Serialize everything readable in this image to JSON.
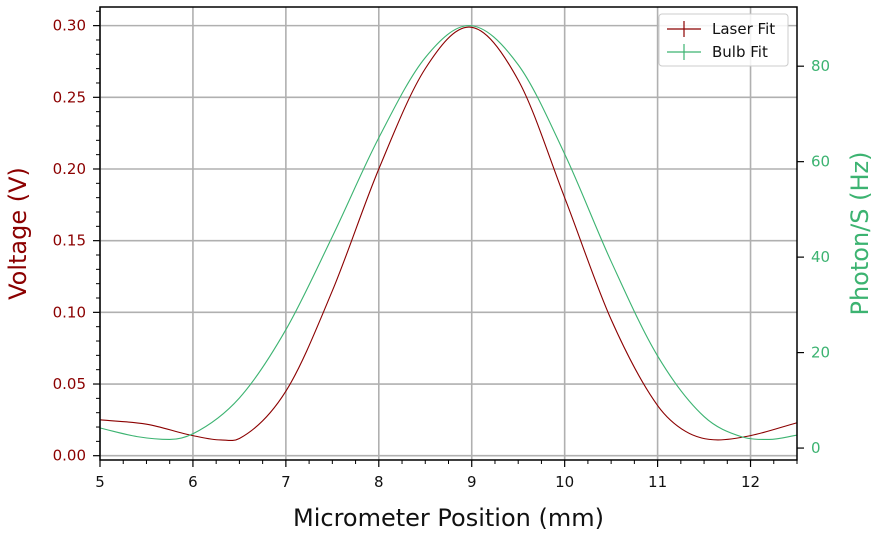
{
  "chart_data": {
    "type": "line",
    "xlabel": "Micrometer Position (mm)",
    "ylabel_left": "Voltage (V)",
    "ylabel_right": "Photon/S (Hz)",
    "xlim": [
      5,
      12.5
    ],
    "ylim_left": [
      -0.003,
      0.313
    ],
    "ylim_right": [
      -2.5,
      92.4
    ],
    "x_ticks": [
      5,
      6,
      7,
      8,
      9,
      10,
      11,
      12
    ],
    "y_ticks_left": [
      "0.00",
      "0.05",
      "0.10",
      "0.15",
      "0.20",
      "0.25",
      "0.30"
    ],
    "y_ticks_right": [
      0,
      20,
      40,
      60,
      80
    ],
    "grid": true,
    "legend_position": "top-right",
    "colors": {
      "left_axis": "#8b0000",
      "right_axis": "#3cb371"
    },
    "series": [
      {
        "name": "Laser Fit",
        "axis": "left",
        "color": "#8b0000",
        "x": [
          5.0,
          5.5,
          6.0,
          6.3,
          6.5,
          7.0,
          7.5,
          8.0,
          8.5,
          8.97,
          9.5,
          10.0,
          10.5,
          11.0,
          11.3,
          11.65,
          12.0,
          12.5
        ],
        "y": [
          0.025,
          0.022,
          0.014,
          0.011,
          0.012,
          0.045,
          0.115,
          0.2,
          0.27,
          0.299,
          0.262,
          0.18,
          0.095,
          0.035,
          0.017,
          0.011,
          0.014,
          0.023
        ]
      },
      {
        "name": "Bulb Fit",
        "axis": "right",
        "color": "#3cb371",
        "x": [
          5.0,
          5.4,
          5.75,
          6.0,
          6.5,
          7.0,
          7.5,
          8.0,
          8.5,
          8.97,
          9.5,
          10.0,
          10.5,
          11.0,
          11.5,
          11.9,
          12.2,
          12.5
        ],
        "y": [
          4.2,
          2.4,
          1.8,
          3.0,
          10.5,
          24.8,
          44.3,
          65.0,
          81.8,
          88.5,
          80.3,
          61.6,
          39.1,
          19.3,
          6.6,
          2.4,
          1.8,
          2.7
        ]
      }
    ]
  }
}
